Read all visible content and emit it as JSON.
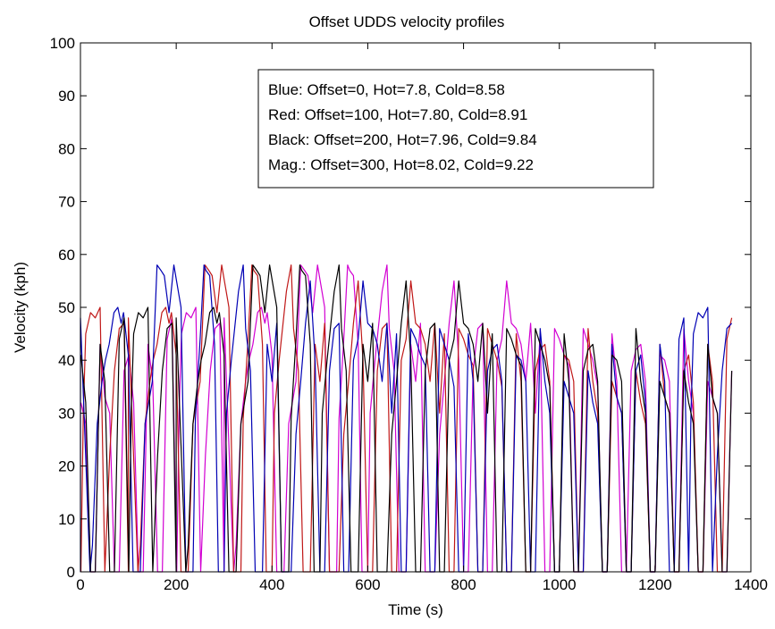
{
  "chart_data": {
    "type": "line",
    "title": "Offset UDDS velocity profiles",
    "xlabel": "Time (s)",
    "ylabel": "Velocity (kph)",
    "xlim": [
      0,
      1400
    ],
    "ylim": [
      0,
      100
    ],
    "xticks": [
      0,
      200,
      400,
      600,
      800,
      1000,
      1200,
      1400
    ],
    "yticks": [
      0,
      10,
      20,
      30,
      40,
      50,
      60,
      70,
      80,
      90,
      100
    ],
    "grid": false,
    "legend_position": "top-center",
    "legend": [
      "Blue: Offset=0, Hot=7.8, Cold=8.58",
      "Red: Offset=100, Hot=7.80, Cold=8.91",
      "Black: Offset=200, Hot=7.96, Cold=9.84",
      "Mag.: Offset=300, Hot=8.02, Cold=9.22"
    ],
    "base_profile": {
      "t": [
        0,
        20,
        25,
        35,
        45,
        52,
        60,
        70,
        78,
        85,
        90,
        100,
        110,
        125,
        135,
        150,
        160,
        168,
        175,
        185,
        195,
        210,
        220,
        235,
        240,
        250,
        258,
        262,
        270,
        280,
        288,
        300,
        305,
        315,
        330,
        340,
        345,
        355,
        365,
        380,
        390,
        400,
        410,
        420,
        440,
        450,
        460,
        470,
        480,
        490,
        500,
        510,
        520,
        530,
        540,
        550,
        560,
        570,
        580,
        590,
        600,
        610,
        620,
        630,
        640,
        650,
        660,
        670,
        680,
        690,
        700,
        710,
        720,
        730,
        740,
        750,
        760,
        770,
        780,
        790,
        800,
        810,
        820,
        830,
        840,
        850,
        860,
        870,
        880,
        890,
        900,
        910,
        920,
        930,
        940,
        950,
        960,
        970,
        980,
        990,
        1000,
        1010,
        1020,
        1030,
        1040,
        1050,
        1060,
        1070,
        1080,
        1090,
        1100,
        1110,
        1120,
        1130,
        1140,
        1150,
        1160,
        1170,
        1180,
        1190,
        1200,
        1210,
        1220,
        1230,
        1240,
        1250,
        1260,
        1270,
        1275,
        1280,
        1290,
        1300,
        1310,
        1320,
        1330,
        1340,
        1350,
        1360,
        1369
      ],
      "v": [
        0,
        0,
        5,
        28,
        36,
        40,
        43,
        49,
        50,
        47,
        49,
        41,
        0,
        0,
        28,
        36,
        58,
        57,
        56,
        49,
        58,
        50,
        0,
        0,
        29,
        44,
        58,
        57,
        56,
        43,
        0,
        0,
        30,
        40,
        53,
        58,
        46,
        38,
        0,
        0,
        43,
        36,
        47,
        0,
        0,
        26,
        36,
        47,
        55,
        40,
        0,
        0,
        38,
        46,
        47,
        0,
        0,
        40,
        44,
        55,
        47,
        46,
        43,
        36,
        47,
        30,
        45,
        0,
        0,
        46,
        44,
        41,
        39,
        0,
        0,
        46,
        43,
        40,
        35,
        0,
        0,
        45,
        36,
        0,
        0,
        38,
        42,
        43,
        36,
        0,
        0,
        41,
        40,
        36,
        0,
        0,
        46,
        36,
        30,
        0,
        0,
        36,
        33,
        30,
        0,
        0,
        38,
        32,
        28,
        0,
        0,
        43,
        33,
        30,
        0,
        0,
        38,
        41,
        32,
        0,
        0,
        43,
        36,
        0,
        0,
        44,
        48,
        0,
        30,
        45,
        49,
        48,
        50,
        0,
        22,
        38,
        46,
        47,
        48
      ]
    },
    "series": [
      {
        "name": "Blue",
        "color": "#0000b4",
        "offset": 0
      },
      {
        "name": "Red",
        "color": "#c01818",
        "offset": 100
      },
      {
        "name": "Black",
        "color": "#000000",
        "offset": 200
      },
      {
        "name": "Mag.",
        "color": "#d200d2",
        "offset": 300
      }
    ]
  }
}
